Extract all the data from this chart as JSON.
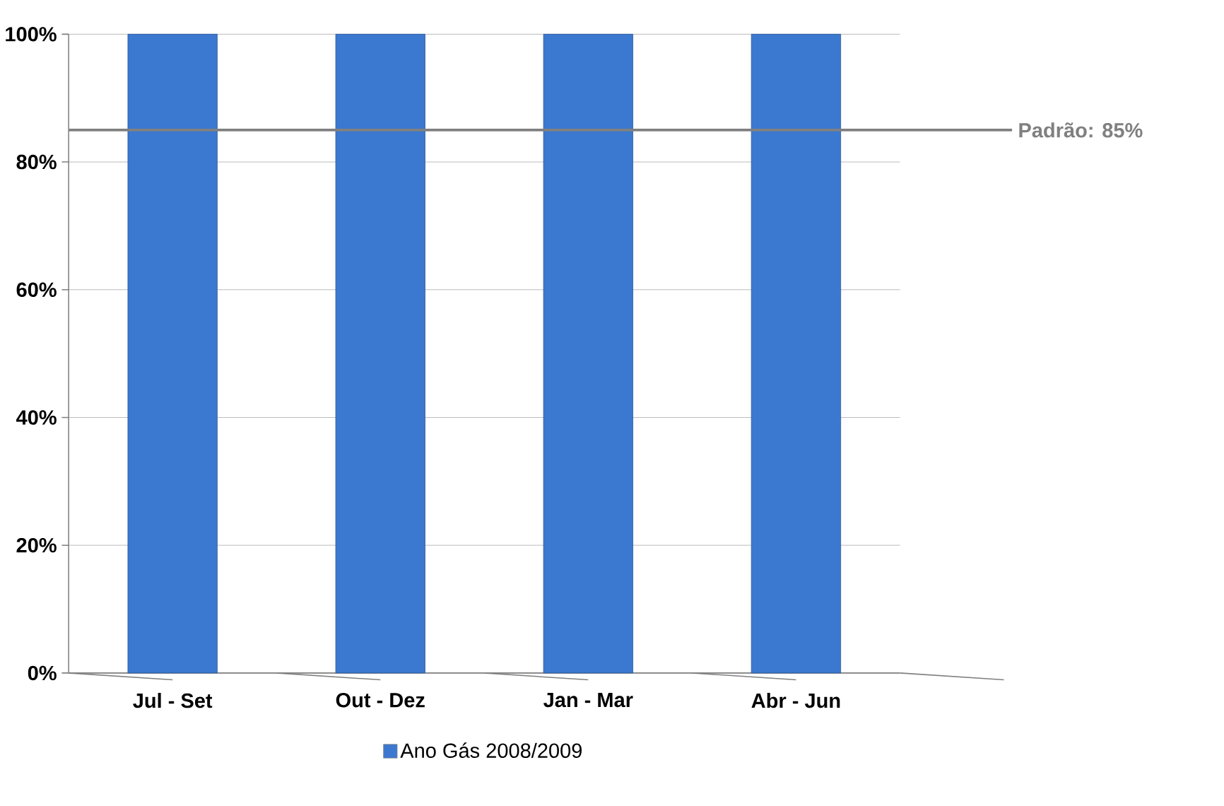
{
  "chart_data": {
    "type": "bar",
    "categories": [
      "Jul - Set",
      "Out - Dez",
      "Jan - Mar",
      "Abr - Jun"
    ],
    "series": [
      {
        "name": "Ano Gás 2008/2009",
        "color": "#3b78d0",
        "values": [
          100,
          100,
          100,
          100
        ]
      }
    ],
    "ylim": [
      0,
      100
    ],
    "yticks": [
      {
        "value": 0,
        "label": "0%"
      },
      {
        "value": 20,
        "label": "20%"
      },
      {
        "value": 40,
        "label": "40%"
      },
      {
        "value": 60,
        "label": "60%"
      },
      {
        "value": 80,
        "label": "80%"
      },
      {
        "value": 100,
        "label": "100%"
      }
    ],
    "grid": "y",
    "legend": "bottom",
    "ref_lines": [
      {
        "axis": "y",
        "value": 85,
        "label": "Padrão: 85%",
        "color": "#808080"
      }
    ]
  }
}
